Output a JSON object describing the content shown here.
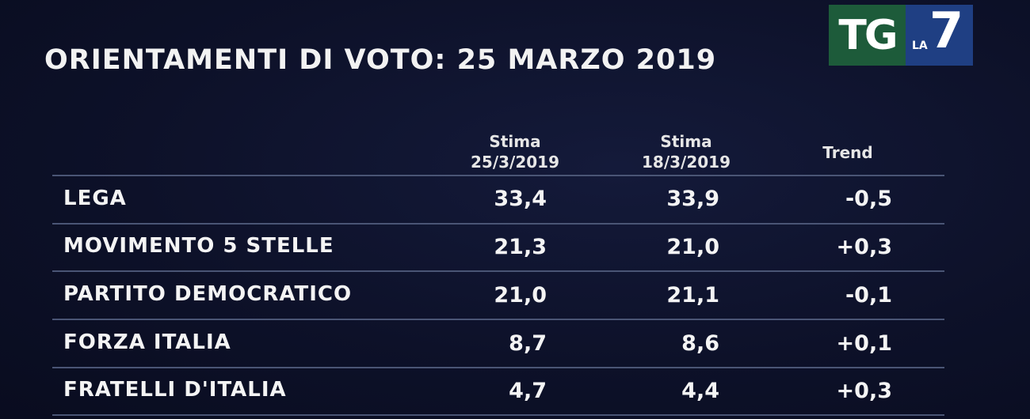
{
  "title": "ORIENTAMENTI DI VOTO: 25 MARZO 2019",
  "logo": {
    "tg": "TG",
    "la": "LA",
    "seven": "7"
  },
  "chart_data": {
    "type": "table",
    "columns": [
      {
        "line1": "Stima",
        "line2": "25/3/2019"
      },
      {
        "line1": "Stima",
        "line2": "18/3/2019"
      },
      {
        "line1": "Trend",
        "line2": ""
      }
    ],
    "rows": [
      {
        "party": "LEGA",
        "stima_25": "33,4",
        "stima_18": "33,9",
        "trend": "-0,5"
      },
      {
        "party": "MOVIMENTO 5 STELLE",
        "stima_25": "21,3",
        "stima_18": "21,0",
        "trend": "+0,3"
      },
      {
        "party": "PARTITO DEMOCRATICO",
        "stima_25": "21,0",
        "stima_18": "21,1",
        "trend": "-0,1"
      },
      {
        "party": "FORZA ITALIA",
        "stima_25": "8,7",
        "stima_18": "8,6",
        "trend": "+0,1"
      },
      {
        "party": "FRATELLI D'ITALIA",
        "stima_25": "4,7",
        "stima_18": "4,4",
        "trend": "+0,3"
      }
    ]
  }
}
